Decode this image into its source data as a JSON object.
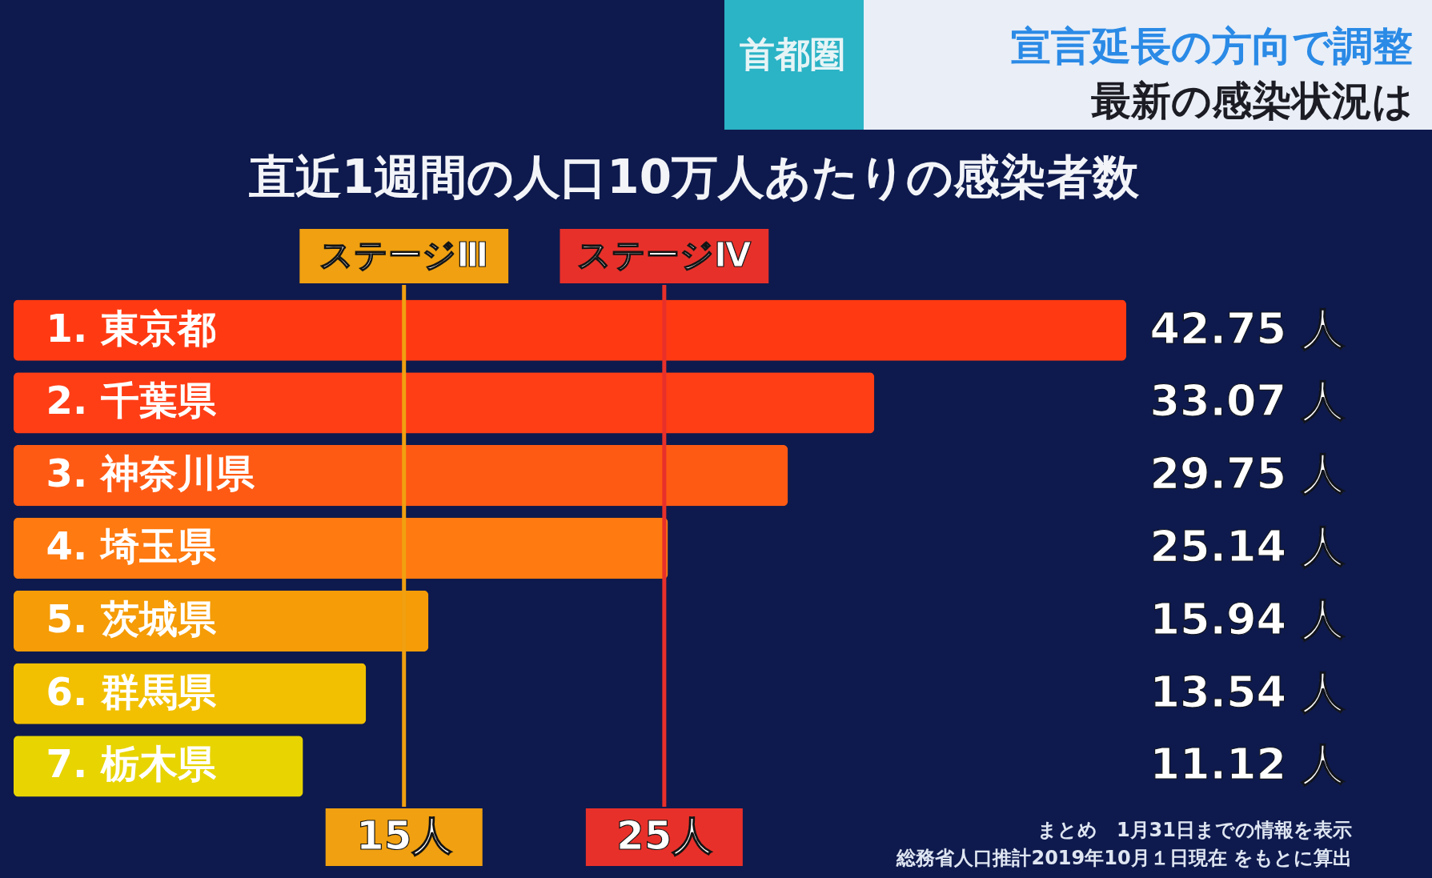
{
  "chart_data": {
    "type": "bar",
    "orientation": "horizontal",
    "title": "直近1週間の人口10万人あたりの感染者数",
    "categories": [
      "1. 東京都",
      "2. 千葉県",
      "3. 神奈川県",
      "4. 埼玉県",
      "5. 茨城県",
      "6. 群馬県",
      "7. 栃木県"
    ],
    "values": [
      42.75,
      33.07,
      29.75,
      25.14,
      15.94,
      13.54,
      11.12
    ],
    "colors": [
      "#ff3a12",
      "#ff3e16",
      "#ff5a14",
      "#ff7a10",
      "#f59c06",
      "#f2c000",
      "#e8d400"
    ],
    "value_labels": [
      "42.75 人",
      "33.07 人",
      "29.75 人",
      "25.14 人",
      "15.94 人",
      "13.54 人",
      "11.12 人"
    ],
    "ref_lines": [
      {
        "axis": "x",
        "value": 15,
        "label": "ステージⅢ",
        "color": "#f0a010"
      },
      {
        "axis": "x",
        "value": 25,
        "label": "ステージⅣ",
        "color": "#e8302a"
      }
    ],
    "annotations": [
      "15人",
      "25人",
      "首都圏",
      "宣言延長の方向で調整",
      "最新の感染状況は",
      "まとめ　1月31日までの情報を表示",
      "総務省人口推計2019年10月１日現在 をもとに算出"
    ],
    "tick_labels": "y",
    "grid": false,
    "legend": false
  }
}
